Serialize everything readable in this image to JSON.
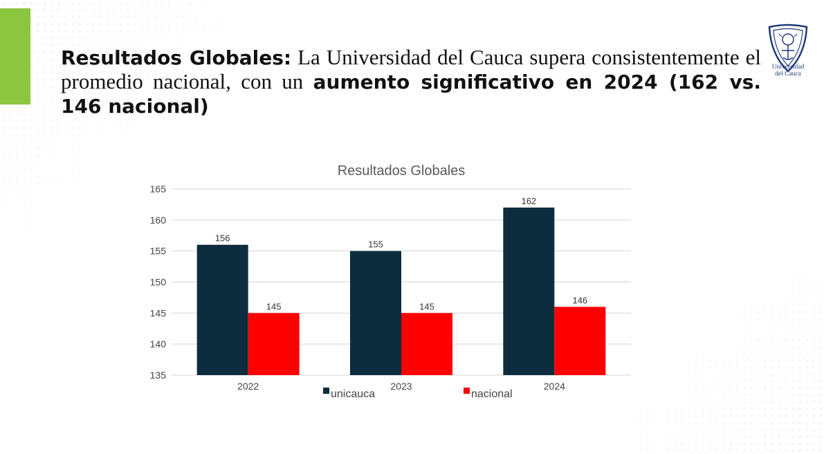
{
  "slide": {
    "headline_bold_1": "Resultados Globales:",
    "headline_regular": "La Universidad del Cauca supera consistentemente el promedio nacional, con un",
    "headline_bold_2": "aumento significativo en 2024 (162 vs. 146 nacional)",
    "logo_line1": "Universidad",
    "logo_line2": "del Cauca",
    "accent_color": "#8cc63f",
    "logo_icon": "university-crest-icon"
  },
  "chart_data": {
    "type": "bar",
    "title": "Resultados Globales",
    "categories": [
      "2022",
      "2023",
      "2024"
    ],
    "series": [
      {
        "name": "unicauca",
        "values": [
          156,
          155,
          162
        ],
        "color": "#0d2d3e"
      },
      {
        "name": "nacional",
        "values": [
          145,
          145,
          146
        ],
        "color": "#ff0000"
      }
    ],
    "ylim": [
      135,
      165
    ],
    "yticks": [
      135,
      140,
      145,
      150,
      155,
      160,
      165
    ],
    "grid": true,
    "legend": "bottom"
  }
}
